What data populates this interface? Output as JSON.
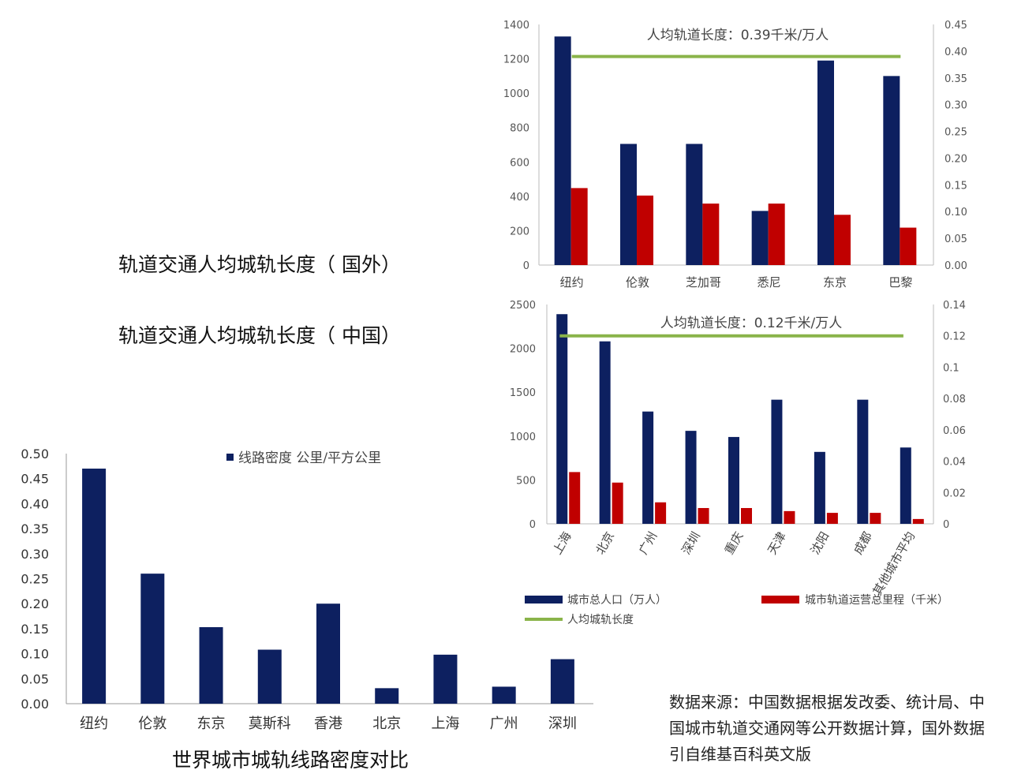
{
  "labels": {
    "foreign": "轨道交通人均城轨长度（  国外）",
    "china": "轨道交通人均城轨长度（  中国）"
  },
  "source_note": "数据来源：中国数据根据发改委、统计局、中国城市轨道交通网等公开数据计算，国外数据引自维基百科英文版",
  "colors": {
    "navy": "#0d2060",
    "red": "#c00000",
    "green": "#8ab44a"
  },
  "chart_data": [
    {
      "type": "bar",
      "categories": [
        "纽约",
        "伦敦",
        "芝加哥",
        "悉尼",
        "东京",
        "巴黎"
      ],
      "series": [
        {
          "axis": "left",
          "color": "#0d2060",
          "values": [
            1330,
            705,
            705,
            315,
            1190,
            1100
          ]
        },
        {
          "axis": "right",
          "color": "#c00000",
          "values": [
            0.144,
            0.13,
            0.115,
            0.115,
            0.094,
            0.07
          ]
        },
        {
          "type": "line",
          "axis": "right",
          "color": "#8ab44a",
          "values": [
            0.39,
            0.39,
            0.39,
            0.39,
            0.39,
            0.39
          ]
        }
      ],
      "annotation": "人均轨道长度：0.39千米/万人",
      "ylim": [
        0,
        1400
      ],
      "yticks": [
        "0",
        "200",
        "400",
        "600",
        "800",
        "1000",
        "1200",
        "1400"
      ],
      "y2lim": [
        0,
        0.45
      ],
      "y2ticks": [
        "0.00",
        "0.05",
        "0.10",
        "0.15",
        "0.20",
        "0.25",
        "0.30",
        "0.35",
        "0.40",
        "0.45"
      ]
    },
    {
      "type": "bar",
      "categories": [
        "上海",
        "北京",
        "广州",
        "深圳",
        "重庆",
        "天津",
        "沈阳",
        "成都",
        "其他城市平均"
      ],
      "series": [
        {
          "name": "城市总人口（万人）",
          "axis": "left",
          "color": "#0d2060",
          "values": [
            2390,
            2080,
            1280,
            1060,
            990,
            1415,
            820,
            1415,
            870
          ]
        },
        {
          "name": "城市轨道运营总里程（千米）",
          "axis": "left",
          "color": "#c00000",
          "values": [
            590,
            470,
            245,
            180,
            180,
            145,
            125,
            125,
            55
          ]
        },
        {
          "name": "人均城轨长度",
          "type": "line",
          "axis": "right",
          "color": "#8ab44a",
          "values": [
            0.12,
            0.12,
            0.12,
            0.12,
            0.12,
            0.12,
            0.12,
            0.12,
            0.12
          ]
        }
      ],
      "annotation": "人均轨道长度：0.12千米/万人",
      "ylim": [
        0,
        2500
      ],
      "yticks": [
        "0",
        "500",
        "1000",
        "1500",
        "2000",
        "2500"
      ],
      "y2lim": [
        0,
        0.14
      ],
      "y2ticks": [
        "0",
        "0.02",
        "0.04",
        "0.06",
        "0.08",
        "0.1",
        "0.12",
        "0.14"
      ],
      "legend": [
        "城市总人口（万人）",
        "城市轨道运营总里程（千米）",
        "人均城轨长度"
      ]
    },
    {
      "type": "bar",
      "title": "世界城市城轨线路密度对比",
      "categories": [
        "纽约",
        "伦敦",
        "东京",
        "莫斯科",
        "香港",
        "北京",
        "上海",
        "广州",
        "深圳"
      ],
      "series": [
        {
          "name": "线路密度 公里/平方公里",
          "color": "#0d2060",
          "values": [
            0.47,
            0.26,
            0.153,
            0.108,
            0.2,
            0.031,
            0.098,
            0.034,
            0.089
          ]
        }
      ],
      "ylim": [
        0,
        0.5
      ],
      "yticks": [
        "0.00",
        "0.05",
        "0.10",
        "0.15",
        "0.20",
        "0.25",
        "0.30",
        "0.35",
        "0.40",
        "0.45",
        "0.50"
      ],
      "legend": [
        "线路密度 公里/平方公里"
      ]
    }
  ]
}
